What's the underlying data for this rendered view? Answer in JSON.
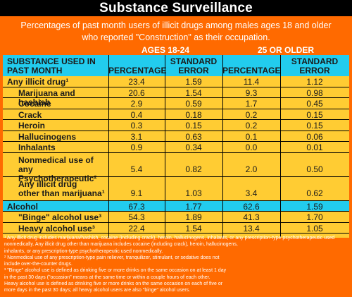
{
  "title": "Substance Surveillance",
  "subtitle_line1": "Percentages of past month users of illicit drugs among males ages 18 and older",
  "subtitle_line2": "who reported \"Construction\" as their occupation.",
  "colors": {
    "orange": "#ff6a00",
    "yellow": "#ffcc33",
    "cyan": "#22ccee",
    "black": "#000000",
    "white": "#ffffff"
  },
  "table": {
    "group_headers": [
      "AGES 18-24",
      "25 OR OLDER"
    ],
    "column_headers": {
      "substance_line1": "SUBSTANCE USED IN",
      "substance_line2": "PAST MONTH",
      "pct_a": "PERCENTAGE",
      "se_a_line1": "STANDARD",
      "se_a_line2": "ERROR",
      "pct_b": "PERCENTAGE",
      "se_b_line1": "STANDARD",
      "se_b_line2": "ERROR"
    },
    "rows": [
      {
        "line1": "Any illicit drug¹",
        "line2": "",
        "v": [
          "23.4",
          "1.59",
          "11.4",
          "1.12"
        ]
      },
      {
        "line1": "Marijuana and hashish",
        "line2": "",
        "v": [
          "20.6",
          "1.54",
          "9.3",
          "0.98"
        ]
      },
      {
        "line1": "Cocaine",
        "line2": "",
        "v": [
          "2.9",
          "0.59",
          "1.7",
          "0.45"
        ]
      },
      {
        "line1": "Crack",
        "line2": "",
        "v": [
          "0.4",
          "0.18",
          "0.2",
          "0.15"
        ]
      },
      {
        "line1": "Heroin",
        "line2": "",
        "v": [
          "0.3",
          "0.15",
          "0.2",
          "0.15"
        ]
      },
      {
        "line1": "Hallucinogens",
        "line2": "",
        "v": [
          "3.1",
          "0.63",
          "0.1",
          "0.06"
        ]
      },
      {
        "line1": "Inhalants",
        "line2": "",
        "v": [
          "0.9",
          "0.34",
          "0.0",
          "0.01"
        ]
      },
      {
        "line1": "Nonmedical use of any",
        "line2": "Psychotherapeutic²",
        "v": [
          "5.4",
          "0.82",
          "2.0",
          "0.50"
        ]
      },
      {
        "line1": "Any illicit drug",
        "line2": "other than marijuana¹",
        "v": [
          "9.1",
          "1.03",
          "3.4",
          "0.62"
        ]
      },
      {
        "line1": "Alcohol",
        "line2": "",
        "v": [
          "67.3",
          "1.77",
          "62.6",
          "1.59"
        ]
      },
      {
        "line1": "\"Binge\" alcohol use³",
        "line2": "",
        "v": [
          "54.3",
          "1.89",
          "41.3",
          "1.70"
        ]
      },
      {
        "line1": "Heavy alcohol use³",
        "line2": "",
        "v": [
          "22.4",
          "1.54",
          "13.4",
          "1.05"
        ]
      }
    ]
  },
  "chart_data": {
    "type": "table",
    "title": "Substance Surveillance",
    "subtitle": "Percentages of past month users of illicit drugs among males ages 18 and older who reported \"Construction\" as their occupation.",
    "column_groups": [
      "AGES 18-24",
      "25 OR OLDER"
    ],
    "columns": [
      "SUBSTANCE USED IN PAST MONTH",
      "PERCENTAGE",
      "STANDARD ERROR",
      "PERCENTAGE",
      "STANDARD ERROR"
    ],
    "rows": [
      [
        "Any illicit drug¹",
        23.4,
        1.59,
        11.4,
        1.12
      ],
      [
        "Marijuana and hashish",
        20.6,
        1.54,
        9.3,
        0.98
      ],
      [
        "Cocaine",
        2.9,
        0.59,
        1.7,
        0.45
      ],
      [
        "Crack",
        0.4,
        0.18,
        0.2,
        0.15
      ],
      [
        "Heroin",
        0.3,
        0.15,
        0.2,
        0.15
      ],
      [
        "Hallucinogens",
        3.1,
        0.63,
        0.1,
        0.06
      ],
      [
        "Inhalants",
        0.9,
        0.34,
        0.0,
        0.01
      ],
      [
        "Nonmedical use of any Psychotherapeutic²",
        5.4,
        0.82,
        2.0,
        0.5
      ],
      [
        "Any illicit drug other than marijuana¹",
        9.1,
        1.03,
        3.4,
        0.62
      ],
      [
        "Alcohol",
        67.3,
        1.77,
        62.6,
        1.59
      ],
      [
        "\"Binge\" alcohol use³",
        54.3,
        1.89,
        41.3,
        1.7
      ],
      [
        "Heavy alcohol use³",
        22.4,
        1.54,
        13.4,
        1.05
      ]
    ]
  },
  "footnotes": [
    "¹ Any illicit drug includes marijuana/hashish, cocaine (including crack), heroin, hallucinogens, inhalants, or any prescription-type psychotherapeutic used",
    "nonmedically. Any illicit drug other than marijuana includes cocaine (including crack), heroin, hallucinogens,",
    "inhalants, or any prescription-type psychotherapeutic used nonmedically.",
    "² Nonmedical use of any prescription-type pain reliever, tranquilizer, stimulant, or sedative does not",
    "include over-the-counter drugs.",
    "³ \"Binge\" alcohol use is defined as drinking five or more drinks on the same occasion on at least 1 day",
    "in the past 30 days (\"occasion\" means at the same time or within a couple hours of each other.",
    "Heavy alcohol use is defined as drinking five or more drinks on the same occasion on each of five or",
    "more days in the past 30 days; all heavy alcohol users are also \"binge\" alcohol users."
  ]
}
